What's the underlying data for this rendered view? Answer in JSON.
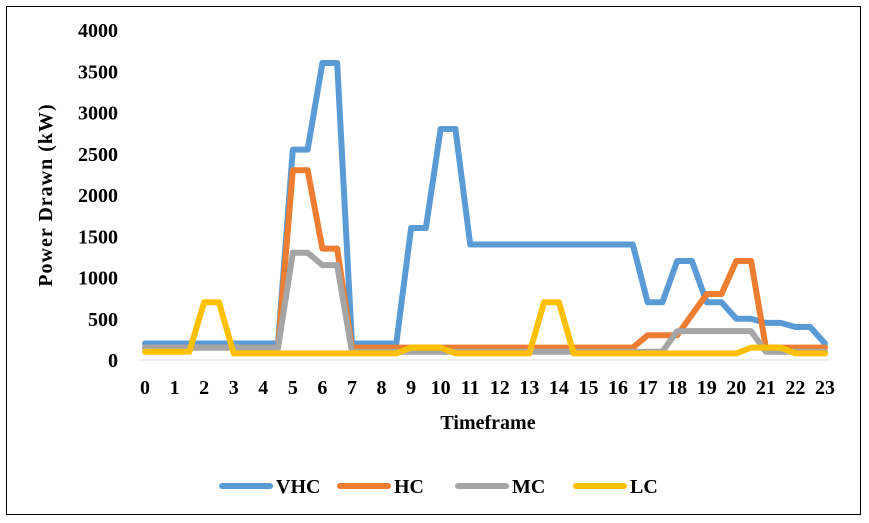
{
  "chart_data": {
    "type": "line",
    "title": "",
    "xlabel": "Timeframe",
    "ylabel": "Power Drawn (kW)",
    "ylim": [
      0,
      4000
    ],
    "yticks": [
      "0",
      "500",
      "1000",
      "1500",
      "2000",
      "2500",
      "3000",
      "3500",
      "4000"
    ],
    "xlim": [
      0,
      23
    ],
    "xticks": [
      "0",
      "1",
      "2",
      "3",
      "4",
      "5",
      "6",
      "7",
      "8",
      "9",
      "10",
      "11",
      "12",
      "13",
      "14",
      "15",
      "16",
      "17",
      "18",
      "19",
      "20",
      "21",
      "22",
      "23"
    ],
    "grid": false,
    "legend_position": "bottom",
    "series": [
      {
        "name": "VHC",
        "color": "#5B9BD5",
        "x": [
          0,
          4.5,
          5,
          5.5,
          6,
          6.5,
          7,
          8.5,
          9,
          9.5,
          10,
          10.5,
          11,
          16.5,
          17,
          17.5,
          18,
          18.5,
          19,
          19.5,
          20,
          20.5,
          21,
          21.5,
          22,
          22.5,
          23
        ],
        "y": [
          200,
          200,
          2550,
          2550,
          3600,
          3600,
          200,
          200,
          1600,
          1600,
          2800,
          2800,
          1400,
          1400,
          700,
          700,
          1200,
          1200,
          700,
          700,
          500,
          500,
          450,
          450,
          400,
          400,
          200
        ]
      },
      {
        "name": "HC",
        "color": "#ED7D31",
        "x": [
          0,
          4.5,
          5,
          5.5,
          6,
          6.5,
          7,
          8,
          16.5,
          17,
          18,
          19,
          19.5,
          20,
          20.5,
          21,
          23
        ],
        "y": [
          150,
          150,
          2300,
          2300,
          1350,
          1350,
          150,
          150,
          150,
          300,
          300,
          800,
          800,
          1200,
          1200,
          150,
          150
        ]
      },
      {
        "name": "MC",
        "color": "#A5A5A5",
        "x": [
          0,
          4.5,
          5,
          5.5,
          6,
          6.5,
          7,
          8.5,
          17.5,
          18,
          20.5,
          21,
          23
        ],
        "y": [
          150,
          150,
          1300,
          1300,
          1150,
          1150,
          100,
          100,
          100,
          350,
          350,
          100,
          100
        ]
      },
      {
        "name": "LC",
        "color": "#FFC000",
        "x": [
          0,
          1.5,
          2,
          2.5,
          3,
          8.5,
          9,
          10,
          10.5,
          11,
          13,
          13.5,
          14,
          14.5,
          20,
          20.5,
          21.5,
          22,
          23
        ],
        "y": [
          100,
          100,
          700,
          700,
          80,
          80,
          150,
          150,
          80,
          80,
          80,
          700,
          700,
          80,
          80,
          150,
          150,
          80,
          80
        ]
      }
    ]
  }
}
